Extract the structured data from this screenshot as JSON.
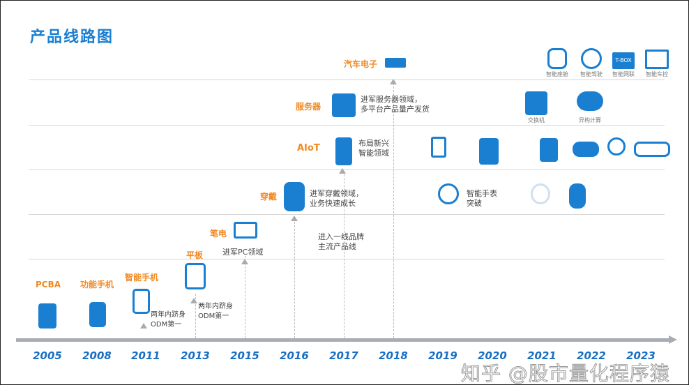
{
  "title": "产品线路图",
  "categories": {
    "pcba": "PCBA",
    "feature_phone": "功能手机",
    "smartphone": "智能手机",
    "tablet": "平板",
    "laptop": "笔电",
    "wearable": "穿戴",
    "aiot": "AIoT",
    "server": "服务器",
    "auto": "汽车电子"
  },
  "notes": {
    "smartphone_odm": "两年内跻身\nODM第一",
    "tablet_odm": "两年内跻身\nODM第一",
    "laptop": "进军PC领域",
    "wearable": "进军穿戴领域，\n业务快速成长",
    "brand": "进入一线品牌\n主流产品线",
    "aiot": "布局新兴\n智能领域",
    "server": "进军服务器领域，\n多平台产品量产发货",
    "smartwatch": "智能手表\n突破"
  },
  "server_items": [
    "交换机",
    "异构计算"
  ],
  "auto_items": [
    "智能座舱",
    "智能驾驶",
    "智能网联",
    "智能车控"
  ],
  "auto_tbox": "T-BOX",
  "years": [
    "2005",
    "2008",
    "2011",
    "2013",
    "2015",
    "2016",
    "2017",
    "2018",
    "2019",
    "2020",
    "2021",
    "2022",
    "2023"
  ],
  "watermark": "知乎 @股市量化程序猿",
  "colors": {
    "accent": "#1a7fd1",
    "category": "#f08a24",
    "axis": "#a9abb5"
  }
}
